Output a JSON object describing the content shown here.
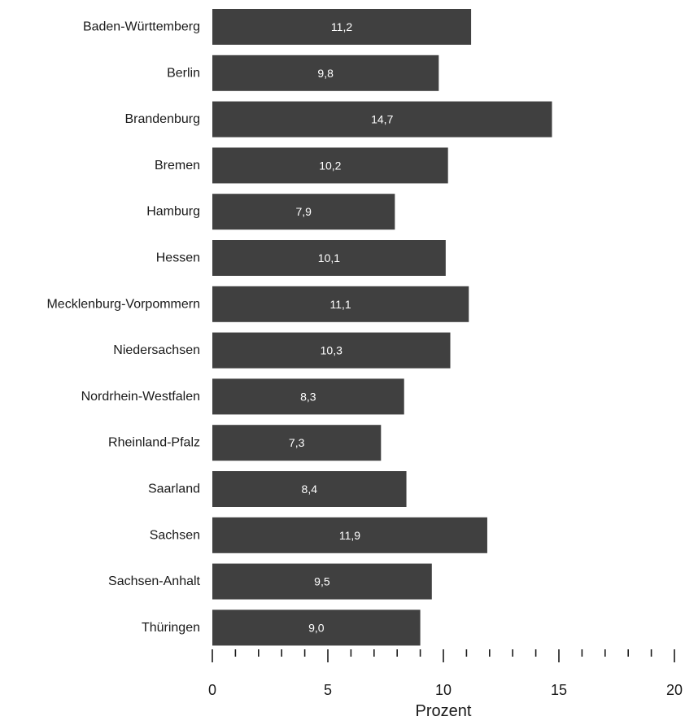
{
  "chart_data": {
    "type": "bar",
    "orientation": "horizontal",
    "categories": [
      "Baden-Württemberg",
      "Berlin",
      "Brandenburg",
      "Bremen",
      "Hamburg",
      "Hessen",
      "Mecklenburg-Vorpommern",
      "Niedersachsen",
      "Nordrhein-Westfalen",
      "Rheinland-Pfalz",
      "Saarland",
      "Sachsen",
      "Sachsen-Anhalt",
      "Thüringen"
    ],
    "values": [
      11.2,
      9.8,
      14.7,
      10.2,
      7.9,
      10.1,
      11.1,
      10.3,
      8.3,
      7.3,
      8.4,
      11.9,
      9.5,
      9.0
    ],
    "value_labels": [
      "11,2",
      "9,8",
      "14,7",
      "10,2",
      "7,9",
      "10,1",
      "11,1",
      "10,3",
      "8,3",
      "7,3",
      "8,4",
      "11,9",
      "9,5",
      "9,0"
    ],
    "xlabel": "Prozent",
    "xlim": [
      0,
      20
    ],
    "x_ticks": [
      0,
      5,
      10,
      15,
      20
    ],
    "x_tick_labels": [
      "0",
      "5",
      "10",
      "15",
      "20"
    ],
    "x_minor_tick_step": 1,
    "bar_color": "#404040",
    "label_color": "#ffffff",
    "grid": false
  }
}
